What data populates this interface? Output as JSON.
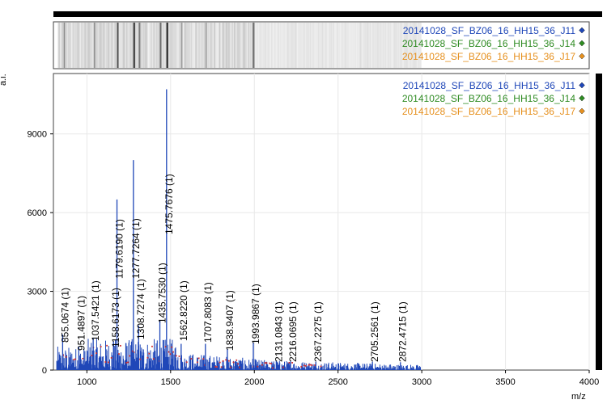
{
  "chart_data": {
    "type": "line",
    "xlabel": "m/z",
    "ylabel": "a.i.",
    "xlim": [
      800,
      4000
    ],
    "ylim": [
      0,
      11300
    ],
    "xticks": [
      1000,
      1500,
      2000,
      2500,
      3000,
      3500,
      4000
    ],
    "yticks": [
      0,
      3000,
      6000,
      9000
    ],
    "grid": true,
    "legend_position": "top-right",
    "series": [
      {
        "name": "20141028_SF_BZ06_16_HH15_36_J11",
        "color": "#1f47b8",
        "marker": "#1f47b8"
      },
      {
        "name": "20141028_SF_BZ06_16_HH15_36_J14",
        "color": "#2e8b22",
        "marker": "#2e8b22"
      },
      {
        "name": "20141028_SF_BZ06_16_HH15_36_J17",
        "color": "#e6901e",
        "marker": "#e6901e"
      }
    ],
    "major_peaks": [
      {
        "mz": 855.0674,
        "intensity": 1350
      },
      {
        "mz": 951.4897,
        "intensity": 900
      },
      {
        "mz": 1037.5421,
        "intensity": 1200
      },
      {
        "mz": 1158.6173,
        "intensity": 1100
      },
      {
        "mz": 1179.619,
        "intensity": 6500
      },
      {
        "mz": 1277.7264,
        "intensity": 8000
      },
      {
        "mz": 1308.7274,
        "intensity": 1700
      },
      {
        "mz": 1435.753,
        "intensity": 1900
      },
      {
        "mz": 1475.7676,
        "intensity": 10700
      },
      {
        "mz": 1562.822,
        "intensity": 1000
      },
      {
        "mz": 1707.8083,
        "intensity": 1000
      },
      {
        "mz": 1838.9407,
        "intensity": 800
      },
      {
        "mz": 1993.9867,
        "intensity": 1050
      },
      {
        "mz": 2131.0843,
        "intensity": 350
      },
      {
        "mz": 2216.0695,
        "intensity": 330
      },
      {
        "mz": 2367.2275,
        "intensity": 320
      },
      {
        "mz": 2705.2561,
        "intensity": 320
      },
      {
        "mz": 2872.4715,
        "intensity": 300
      }
    ],
    "peak_labels": [
      "855.0674 (1)",
      "951.4897 (1)",
      "1037.5421 (1)",
      "1158.6173 (1)",
      "1179.6190 (1)",
      "1277.7264 (1)",
      "1308.7274 (1)",
      "1435.7530 (1)",
      "1475.7676 (1)",
      "1562.8220 (1)",
      "1707.8083 (1)",
      "1838.9407 (1)",
      "1993.9867 (1)",
      "2131.0843 (1)",
      "2216.0695 (1)",
      "2367.2275 (1)",
      "2705.2561 (1)",
      "2872.4715 (1)"
    ],
    "gel_bands": [
      {
        "mz": 860,
        "strength": 0.35
      },
      {
        "mz": 1040,
        "strength": 0.3
      },
      {
        "mz": 1180,
        "strength": 0.65
      },
      {
        "mz": 1278,
        "strength": 0.75
      },
      {
        "mz": 1310,
        "strength": 0.45
      },
      {
        "mz": 1436,
        "strength": 0.5
      },
      {
        "mz": 1476,
        "strength": 0.9
      },
      {
        "mz": 1563,
        "strength": 0.25
      },
      {
        "mz": 1708,
        "strength": 0.25
      },
      {
        "mz": 1994,
        "strength": 0.5
      }
    ]
  }
}
